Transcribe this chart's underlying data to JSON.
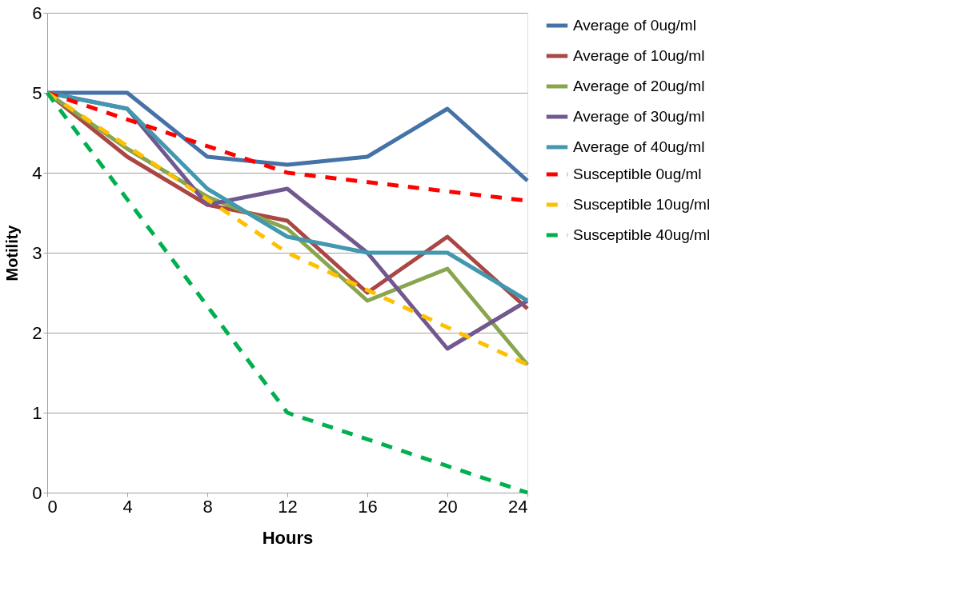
{
  "chart_data": {
    "type": "line",
    "xlabel": "Hours",
    "ylabel": "Motility",
    "x": [
      0,
      4,
      8,
      12,
      16,
      20,
      24
    ],
    "xlim": [
      0,
      24
    ],
    "xticks": [
      0,
      4,
      8,
      12,
      16,
      20,
      24
    ],
    "ylim": [
      0,
      6
    ],
    "yticks": [
      0,
      1,
      2,
      3,
      4,
      5,
      6
    ],
    "grid": "y",
    "legend": "right",
    "marker": "none",
    "series": [
      {
        "name": "Average of 0ug/ml",
        "color": "#4572a7",
        "line_style": "solid",
        "values": [
          5,
          5,
          4.2,
          4.1,
          4.2,
          4.8,
          3.9
        ]
      },
      {
        "name": "Average of 10ug/ml",
        "color": "#aa4643",
        "line_style": "solid",
        "values": [
          5,
          4.2,
          3.6,
          3.4,
          2.5,
          3.2,
          2.3
        ]
      },
      {
        "name": "Average of 20ug/ml",
        "color": "#89a54e",
        "line_style": "solid",
        "values": [
          5,
          4.3,
          3.7,
          3.3,
          2.4,
          2.8,
          1.6
        ]
      },
      {
        "name": "Average of 30ug/ml",
        "color": "#71588f",
        "line_style": "solid",
        "values": [
          5,
          4.8,
          3.6,
          3.8,
          3.0,
          1.8,
          2.4
        ]
      },
      {
        "name": "Average of 40ug/ml",
        "color": "#4198af",
        "line_style": "solid",
        "values": [
          5,
          4.8,
          3.8,
          3.2,
          3.0,
          3.0,
          2.4
        ]
      },
      {
        "name": "Susceptible 0ug/ml",
        "color": "#ff0000",
        "line_style": "dashed",
        "x": [
          0,
          12,
          24
        ],
        "values": [
          5,
          4.0,
          3.65
        ]
      },
      {
        "name": "Susceptible 10ug/ml",
        "color": "#ffc000",
        "line_style": "dashed",
        "x": [
          0,
          12,
          24
        ],
        "values": [
          5,
          3.0,
          1.6
        ]
      },
      {
        "name": "Susceptible 40ug/ml",
        "color": "#00b050",
        "line_style": "dashed",
        "x": [
          0,
          12,
          24
        ],
        "values": [
          5,
          1.0,
          0
        ]
      }
    ]
  }
}
